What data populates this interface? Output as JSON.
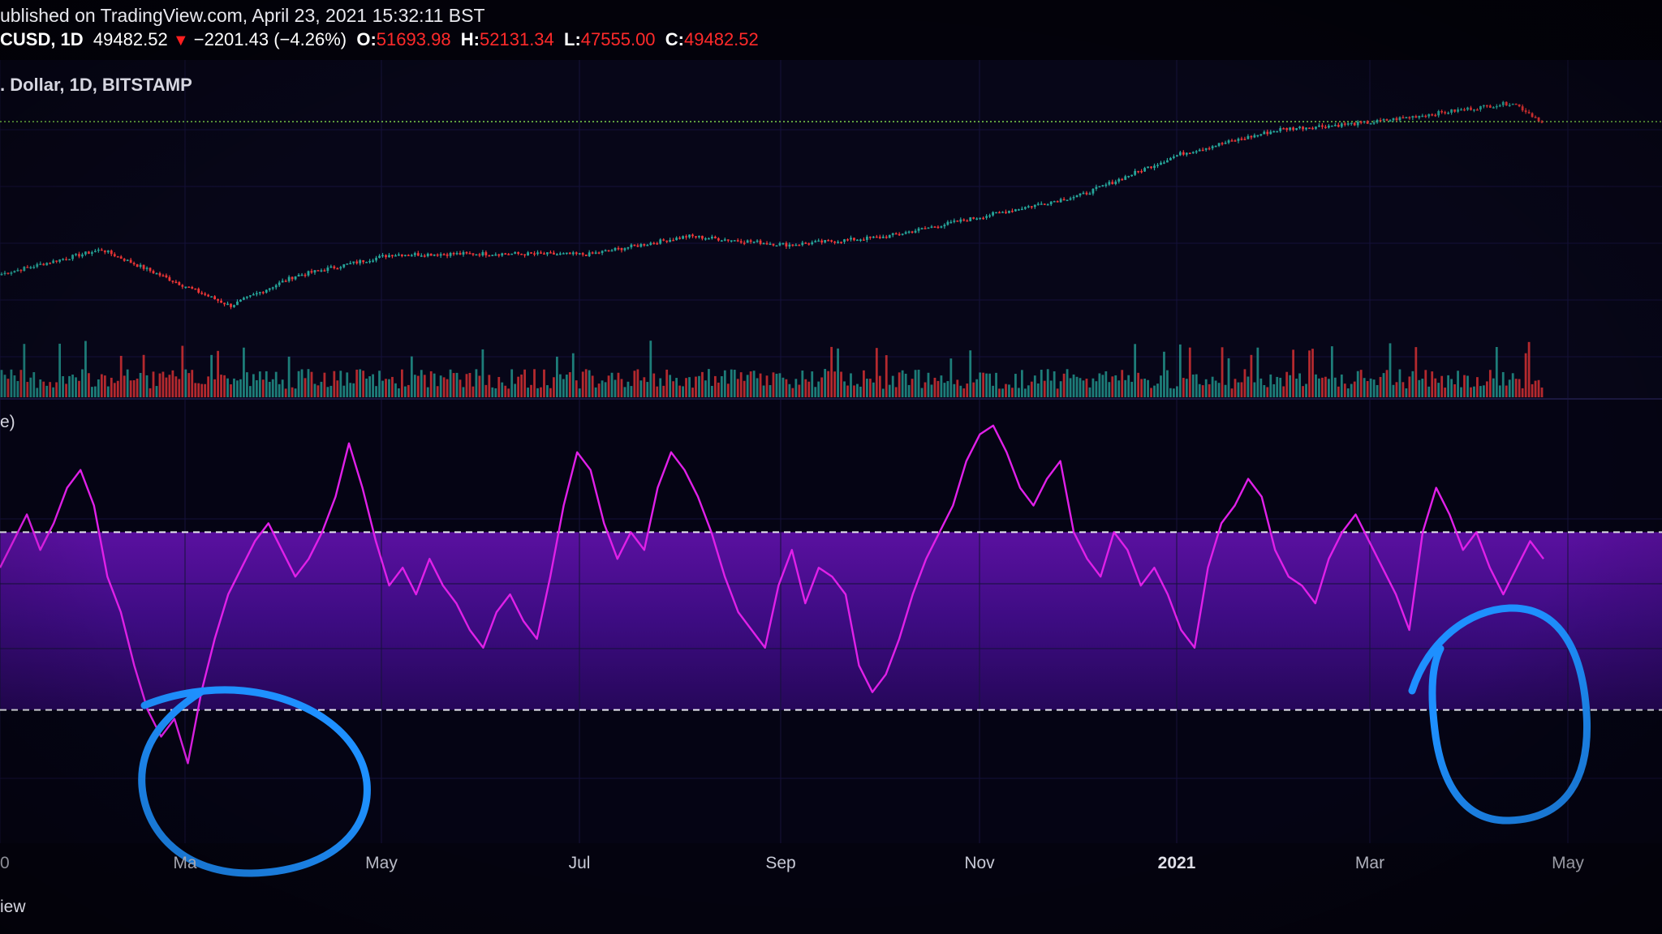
{
  "header": {
    "published": "ublished on TradingView.com, April 23, 2021 15:32:11 BST",
    "symbol": "CUSD, 1D",
    "last": "49482.52",
    "change": "−2201.43 (−4.26%)",
    "o_label": "O:",
    "o_value": "51693.98",
    "h_label": "H:",
    "h_value": "52131.34",
    "l_label": "L:",
    "l_value": "47555.00",
    "c_label": "C:",
    "c_value": "49482.52",
    "pane_title": ". Dollar, 1D, BITSTAMP",
    "rsi_title": "e)",
    "footer_left": "iew"
  },
  "colors": {
    "background": "#03020b",
    "up": "#26a69a",
    "down": "#ef3636",
    "rsi_line": "#e020e8",
    "rsi_band": "#4a0f8a",
    "annotation": "#1e90ff",
    "price_line": "#7fd14a"
  },
  "chart_data": [
    {
      "type": "candlestick",
      "symbol": "BTCUSD",
      "interval": "1D",
      "exchange": "BITSTAMP",
      "x_range": [
        "2020-01",
        "2021-05"
      ],
      "y_scale": "log",
      "last_close": 49482.52,
      "approx_closes": [
        {
          "x": "2020-01",
          "y": 7200
        },
        {
          "x": "2020-02",
          "y": 9800
        },
        {
          "x": "2020-03-12",
          "y": 4800
        },
        {
          "x": "2020-04",
          "y": 7000
        },
        {
          "x": "2020-05",
          "y": 9200
        },
        {
          "x": "2020-06",
          "y": 9300
        },
        {
          "x": "2020-07",
          "y": 9200
        },
        {
          "x": "2020-08",
          "y": 11600
        },
        {
          "x": "2020-09",
          "y": 10400
        },
        {
          "x": "2020-10",
          "y": 11500
        },
        {
          "x": "2020-11",
          "y": 15000
        },
        {
          "x": "2020-12",
          "y": 19500
        },
        {
          "x": "2021-01",
          "y": 33000
        },
        {
          "x": "2021-02",
          "y": 45000
        },
        {
          "x": "2021-03",
          "y": 49000
        },
        {
          "x": "2021-04-14",
          "y": 63000
        },
        {
          "x": "2021-04-23",
          "y": 49482.52
        }
      ]
    },
    {
      "type": "line",
      "series": [
        {
          "name": "RSI",
          "values": [
            62,
            68,
            74,
            66,
            72,
            80,
            84,
            76,
            60,
            52,
            40,
            30,
            24,
            28,
            18,
            34,
            46,
            56,
            62,
            68,
            72,
            66,
            60,
            64,
            70,
            78,
            90,
            80,
            68,
            58,
            62,
            56,
            64,
            58,
            54,
            48,
            44,
            52,
            56,
            50,
            46,
            60,
            76,
            88,
            84,
            72,
            64,
            70,
            66,
            80,
            88,
            84,
            78,
            70,
            60,
            52,
            48,
            44,
            58,
            66,
            54,
            62,
            60,
            56,
            40,
            34,
            38,
            46,
            56,
            64,
            70,
            76,
            86,
            92,
            94,
            88,
            80,
            76,
            82,
            86,
            70,
            64,
            60,
            70,
            66,
            58,
            62,
            56,
            48,
            44,
            62,
            72,
            76,
            82,
            78,
            66,
            60,
            58,
            54,
            64,
            70,
            74,
            68,
            62,
            56,
            48,
            70,
            80,
            74,
            66,
            70,
            62,
            56,
            62,
            68,
            64
          ]
        }
      ],
      "ylim": [
        0,
        100
      ],
      "reference_lines": [
        70,
        30
      ],
      "x_ticks": [
        "0",
        "Ma",
        "May",
        "Jul",
        "Sep",
        "Nov",
        "2021",
        "Mar",
        "May"
      ]
    }
  ]
}
